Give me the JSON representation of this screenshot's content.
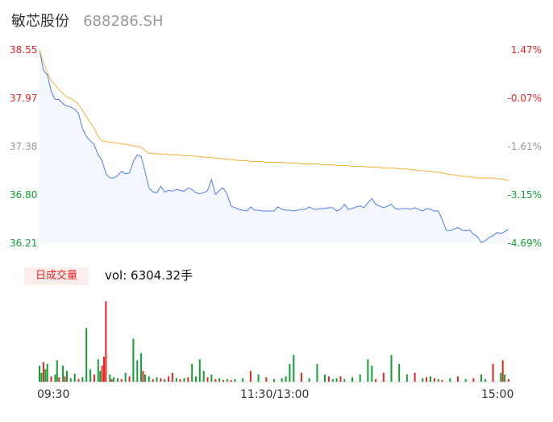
{
  "header": {
    "name": "敏芯股份",
    "code": "688286.SH"
  },
  "volume": {
    "tag": "日成交量",
    "label": "vol: 6304.32手"
  },
  "colors": {
    "up": "#ee2222",
    "down": "#11a033",
    "price": "#4d7ee8",
    "avg": "#f2b134",
    "flat": "#999999"
  },
  "chart_data": {
    "type": "line",
    "title": "",
    "y_left_ticks": [
      "38.55",
      "37.97",
      "37.38",
      "36.80",
      "36.21"
    ],
    "y_right_ticks": [
      "1.47%",
      "-0.07%",
      "-1.61%",
      "-3.15%",
      "-4.69%"
    ],
    "ylim": [
      36.21,
      38.55
    ],
    "x_ticks": [
      "09:30",
      "11:30/13:00",
      "15:00"
    ],
    "n_points": 241,
    "series": [
      {
        "name": "price",
        "x": [
          0,
          2,
          4,
          6,
          8,
          10,
          12,
          14,
          16,
          18,
          20,
          22,
          24,
          26,
          28,
          30,
          32,
          34,
          36,
          38,
          40,
          42,
          44,
          46,
          48,
          50,
          52,
          54,
          56,
          58,
          60,
          62,
          64,
          66,
          68,
          70,
          72,
          74,
          76,
          78,
          80,
          82,
          84,
          86,
          88,
          90,
          92,
          94,
          96,
          98,
          100,
          102,
          104,
          106,
          108,
          110,
          112,
          114,
          116,
          118,
          120,
          122,
          124,
          126,
          128,
          130,
          132,
          134,
          136,
          138,
          140,
          142,
          144,
          146,
          148,
          150,
          152,
          154,
          156,
          158,
          160,
          162,
          164,
          166,
          168,
          170,
          172,
          174,
          176,
          178,
          180,
          182,
          184,
          186,
          188,
          190,
          192,
          194,
          196,
          198,
          200,
          202,
          204,
          206,
          208,
          210,
          212,
          214,
          216,
          218,
          220,
          222,
          224,
          226,
          228,
          230,
          232,
          234,
          236,
          238,
          240
        ],
        "y": [
          38.55,
          38.3,
          38.25,
          38.05,
          37.95,
          37.95,
          37.9,
          37.87,
          37.86,
          37.83,
          37.78,
          37.6,
          37.5,
          37.45,
          37.4,
          37.28,
          37.21,
          37.05,
          37.0,
          37.0,
          37.03,
          37.08,
          37.05,
          37.06,
          37.2,
          37.28,
          37.26,
          37.08,
          36.88,
          36.83,
          36.82,
          36.9,
          36.83,
          36.85,
          36.84,
          36.86,
          36.85,
          36.84,
          36.88,
          36.86,
          36.82,
          36.81,
          36.82,
          36.85,
          36.98,
          36.8,
          36.85,
          36.88,
          36.8,
          36.66,
          36.64,
          36.62,
          36.61,
          36.6,
          36.65,
          36.61,
          36.61,
          36.6,
          36.6,
          36.6,
          36.6,
          36.65,
          36.62,
          36.61,
          36.61,
          36.6,
          36.61,
          36.62,
          36.62,
          36.65,
          36.62,
          36.62,
          36.63,
          36.63,
          36.64,
          36.64,
          36.6,
          36.62,
          36.68,
          36.62,
          36.63,
          36.65,
          36.66,
          36.64,
          36.7,
          36.75,
          36.68,
          36.66,
          36.64,
          36.66,
          36.68,
          36.63,
          36.62,
          36.63,
          36.63,
          36.62,
          36.64,
          36.62,
          36.6,
          36.63,
          36.62,
          36.6,
          36.6,
          36.5,
          36.37,
          36.36,
          36.38,
          36.4,
          36.37,
          36.36,
          36.37,
          36.32,
          36.29,
          36.22,
          36.24,
          36.28,
          36.3,
          36.34,
          36.33,
          36.35,
          36.38
        ]
      },
      {
        "name": "avg",
        "x": [
          0,
          2,
          4,
          6,
          8,
          10,
          12,
          14,
          16,
          18,
          20,
          22,
          24,
          26,
          28,
          30,
          32,
          34,
          36,
          38,
          40,
          42,
          44,
          46,
          48,
          50,
          52,
          54,
          56,
          58,
          60,
          62,
          64,
          66,
          68,
          70,
          72,
          74,
          76,
          78,
          80,
          82,
          84,
          86,
          88,
          90,
          92,
          94,
          96,
          98,
          100,
          102,
          104,
          106,
          108,
          110,
          112,
          114,
          116,
          118,
          120,
          122,
          124,
          126,
          128,
          130,
          132,
          134,
          136,
          138,
          140,
          142,
          144,
          146,
          148,
          150,
          152,
          154,
          156,
          158,
          160,
          162,
          164,
          166,
          168,
          170,
          172,
          174,
          176,
          178,
          180,
          182,
          184,
          186,
          188,
          190,
          192,
          194,
          196,
          198,
          200,
          202,
          204,
          206,
          208,
          210,
          212,
          214,
          216,
          218,
          220,
          222,
          224,
          226,
          228,
          230,
          232,
          234,
          236,
          238,
          240
        ],
        "y": [
          38.55,
          38.4,
          38.27,
          38.18,
          38.12,
          38.07,
          38.02,
          37.98,
          37.96,
          37.93,
          37.89,
          37.82,
          37.74,
          37.67,
          37.6,
          37.5,
          37.45,
          37.44,
          37.43,
          37.43,
          37.42,
          37.41,
          37.41,
          37.4,
          37.39,
          37.38,
          37.37,
          37.33,
          37.3,
          37.3,
          37.29,
          37.29,
          37.29,
          37.28,
          37.28,
          37.28,
          37.28,
          37.27,
          37.27,
          37.27,
          37.26,
          37.26,
          37.25,
          37.25,
          37.25,
          37.24,
          37.24,
          37.23,
          37.23,
          37.22,
          37.22,
          37.21,
          37.21,
          37.21,
          37.2,
          37.2,
          37.2,
          37.2,
          37.19,
          37.19,
          37.19,
          37.19,
          37.19,
          37.18,
          37.18,
          37.18,
          37.18,
          37.17,
          37.17,
          37.17,
          37.17,
          37.17,
          37.16,
          37.16,
          37.16,
          37.16,
          37.15,
          37.15,
          37.15,
          37.15,
          37.14,
          37.14,
          37.14,
          37.14,
          37.13,
          37.13,
          37.13,
          37.13,
          37.12,
          37.12,
          37.12,
          37.12,
          37.11,
          37.11,
          37.11,
          37.1,
          37.1,
          37.09,
          37.09,
          37.08,
          37.08,
          37.07,
          37.07,
          37.06,
          37.05,
          37.04,
          37.04,
          37.03,
          37.02,
          37.02,
          37.01,
          37.01,
          37.0,
          37.0,
          37.0,
          37.0,
          37.0,
          36.99,
          36.99,
          36.98,
          36.97
        ]
      }
    ],
    "volume_series": {
      "x": [
        0,
        1,
        2,
        3,
        4,
        6,
        8,
        9,
        10,
        12,
        13,
        14,
        16,
        18,
        20,
        22,
        24,
        26,
        28,
        30,
        31,
        32,
        33,
        34,
        36,
        37,
        38,
        40,
        42,
        44,
        46,
        48,
        50,
        52,
        53,
        54,
        56,
        58,
        60,
        62,
        64,
        66,
        68,
        70,
        72,
        74,
        76,
        78,
        80,
        82,
        84,
        86,
        88,
        90,
        92,
        94,
        96,
        98,
        100,
        104,
        108,
        112,
        116,
        120,
        124,
        126,
        128,
        130,
        134,
        138,
        142,
        146,
        148,
        150,
        152,
        154,
        156,
        160,
        164,
        168,
        170,
        172,
        176,
        180,
        184,
        188,
        192,
        196,
        198,
        200,
        202,
        204,
        206,
        210,
        214,
        218,
        222,
        226,
        228,
        232,
        236,
        237,
        238,
        240
      ],
      "v": [
        18,
        10,
        22,
        14,
        20,
        6,
        8,
        24,
        5,
        18,
        6,
        12,
        4,
        9,
        3,
        5,
        60,
        14,
        8,
        25,
        12,
        18,
        28,
        90,
        8,
        3,
        5,
        4,
        3,
        10,
        6,
        48,
        24,
        32,
        12,
        8,
        6,
        3,
        5,
        4,
        3,
        6,
        10,
        4,
        3,
        4,
        5,
        20,
        6,
        25,
        12,
        5,
        8,
        3,
        4,
        2,
        3,
        2,
        3,
        4,
        12,
        8,
        5,
        3,
        4,
        6,
        20,
        30,
        10,
        4,
        20,
        8,
        6,
        3,
        4,
        6,
        3,
        5,
        8,
        25,
        18,
        3,
        10,
        30,
        20,
        8,
        10,
        4,
        5,
        6,
        4,
        3,
        2,
        4,
        6,
        3,
        4,
        8,
        3,
        20,
        10,
        24,
        8,
        3
      ],
      "dir": [
        "d",
        "d",
        "u",
        "d",
        "d",
        "u",
        "d",
        "d",
        "u",
        "d",
        "u",
        "d",
        "d",
        "d",
        "u",
        "d",
        "d",
        "d",
        "u",
        "d",
        "d",
        "u",
        "u",
        "u",
        "d",
        "u",
        "d",
        "d",
        "u",
        "d",
        "u",
        "d",
        "d",
        "d",
        "u",
        "d",
        "d",
        "u",
        "d",
        "u",
        "d",
        "u",
        "u",
        "d",
        "u",
        "d",
        "u",
        "d",
        "d",
        "d",
        "d",
        "u",
        "d",
        "u",
        "d",
        "u",
        "d",
        "u",
        "d",
        "d",
        "u",
        "d",
        "u",
        "d",
        "d",
        "d",
        "d",
        "d",
        "u",
        "d",
        "d",
        "d",
        "u",
        "d",
        "d",
        "u",
        "d",
        "d",
        "d",
        "d",
        "d",
        "u",
        "u",
        "d",
        "d",
        "d",
        "u",
        "d",
        "u",
        "d",
        "u",
        "d",
        "u",
        "d",
        "u",
        "d",
        "u",
        "d",
        "d",
        "u",
        "d",
        "u",
        "d",
        "u"
      ]
    }
  }
}
